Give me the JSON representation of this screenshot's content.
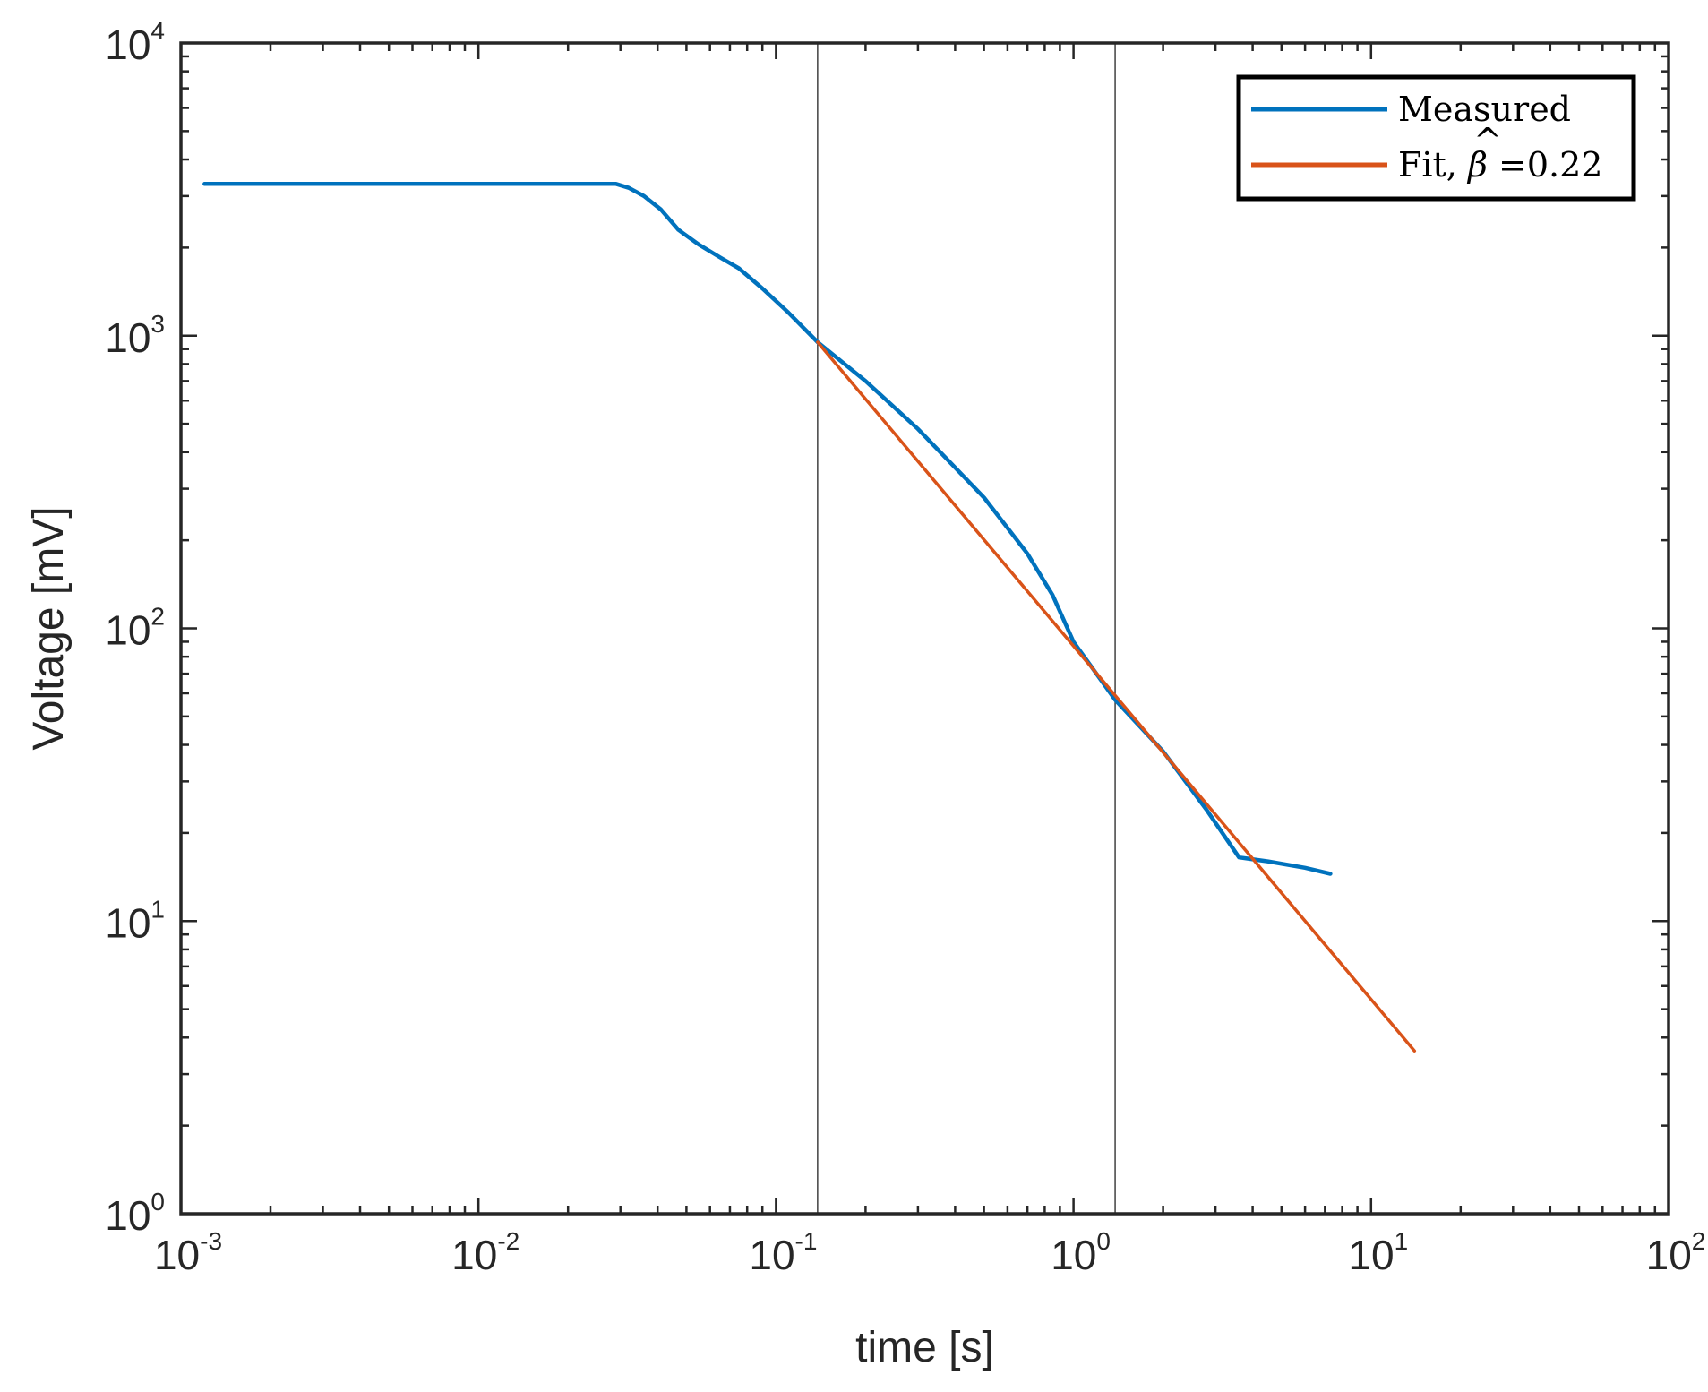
{
  "chart_data": {
    "type": "line",
    "xlabel": "time [s]",
    "ylabel": "Voltage [mV]",
    "xscale": "log",
    "yscale": "log",
    "xlim": [
      0.001,
      100
    ],
    "ylim": [
      1,
      10000
    ],
    "x_ticks": [
      {
        "base": "10",
        "exp": "-3",
        "value": 0.001
      },
      {
        "base": "10",
        "exp": "-2",
        "value": 0.01
      },
      {
        "base": "10",
        "exp": "-1",
        "value": 0.1
      },
      {
        "base": "10",
        "exp": "0",
        "value": 1
      },
      {
        "base": "10",
        "exp": "1",
        "value": 10
      },
      {
        "base": "10",
        "exp": "2",
        "value": 100
      }
    ],
    "y_ticks": [
      {
        "base": "10",
        "exp": "0",
        "value": 1
      },
      {
        "base": "10",
        "exp": "1",
        "value": 10
      },
      {
        "base": "10",
        "exp": "2",
        "value": 100
      },
      {
        "base": "10",
        "exp": "3",
        "value": 1000
      },
      {
        "base": "10",
        "exp": "4",
        "value": 10000
      }
    ],
    "grid": false,
    "legend": {
      "placement": "top-right",
      "entries": [
        {
          "label": "Measured",
          "series": "Measured"
        },
        {
          "label_prefix": "Fit, ",
          "label_symbol": "β",
          "label_suffix": " =0.22",
          "series": "Fit"
        }
      ]
    },
    "vlines": [
      0.138,
      1.38
    ],
    "series": [
      {
        "name": "Measured",
        "color": "#0072BD",
        "points": [
          [
            0.0012,
            3300
          ],
          [
            0.005,
            3300
          ],
          [
            0.02,
            3300
          ],
          [
            0.029,
            3300
          ],
          [
            0.032,
            3200
          ],
          [
            0.036,
            3000
          ],
          [
            0.041,
            2700
          ],
          [
            0.047,
            2300
          ],
          [
            0.055,
            2050
          ],
          [
            0.065,
            1850
          ],
          [
            0.075,
            1700
          ],
          [
            0.09,
            1450
          ],
          [
            0.11,
            1200
          ],
          [
            0.138,
            950
          ],
          [
            0.2,
            700
          ],
          [
            0.3,
            480
          ],
          [
            0.5,
            280
          ],
          [
            0.7,
            180
          ],
          [
            0.85,
            130
          ],
          [
            1.0,
            90
          ],
          [
            1.38,
            57
          ],
          [
            2.0,
            38
          ],
          [
            2.8,
            24
          ],
          [
            3.6,
            16.5
          ],
          [
            4.5,
            16
          ],
          [
            6.0,
            15.2
          ],
          [
            7.3,
            14.5
          ]
        ]
      },
      {
        "name": "Fit",
        "color": "#D95319",
        "points": [
          [
            0.138,
            950
          ],
          [
            14,
            3.6
          ]
        ]
      }
    ]
  }
}
